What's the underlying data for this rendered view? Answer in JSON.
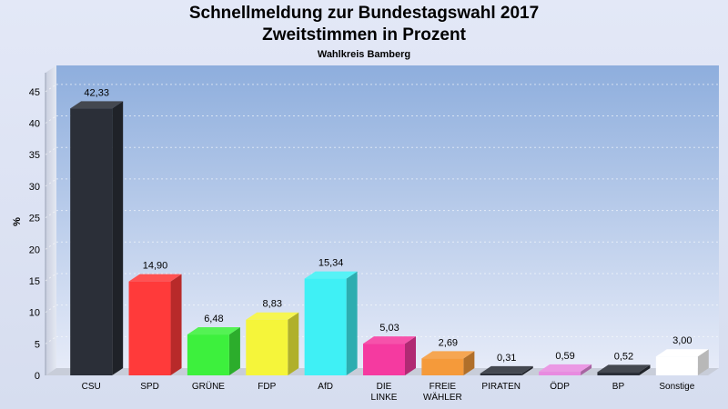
{
  "header": {
    "title": "Schnellmeldung zur Bundestagswahl 2017",
    "subtitle": "Zweitstimmen in Prozent",
    "region": "Wahlkreis Bamberg"
  },
  "chart_data": {
    "type": "bar",
    "title": "Schnellmeldung zur Bundestagswahl 2017",
    "subtitle": "Zweitstimmen in Prozent",
    "ylabel": "%",
    "xlabel": "",
    "ylim": [
      0,
      48
    ],
    "yticks": [
      0,
      5,
      10,
      15,
      20,
      25,
      30,
      35,
      40,
      45
    ],
    "grid": true,
    "categories": [
      [
        "CSU"
      ],
      [
        "SPD"
      ],
      [
        "GRÜNE"
      ],
      [
        "FDP"
      ],
      [
        "AfD"
      ],
      [
        "DIE",
        "LINKE"
      ],
      [
        "FREIE",
        "WÄHLER"
      ],
      [
        "PIRATEN"
      ],
      [
        "ÖDP"
      ],
      [
        "BP"
      ],
      [
        "Sonstige"
      ]
    ],
    "values": [
      42.33,
      14.9,
      6.48,
      8.83,
      15.34,
      5.03,
      2.69,
      0.31,
      0.59,
      0.52,
      3.0
    ],
    "value_labels": [
      "42,33",
      "14,90",
      "6,48",
      "8,83",
      "15,34",
      "5,03",
      "2,69",
      "0,31",
      "0,59",
      "0,52",
      "3,00"
    ],
    "colors": [
      "#2b2f38",
      "#ff3a3a",
      "#3df03d",
      "#f5f53a",
      "#3ff0f5",
      "#f53aa0",
      "#f59a3a",
      "#2b2f38",
      "#e88be0",
      "#2b2f38",
      "#ffffff"
    ]
  }
}
